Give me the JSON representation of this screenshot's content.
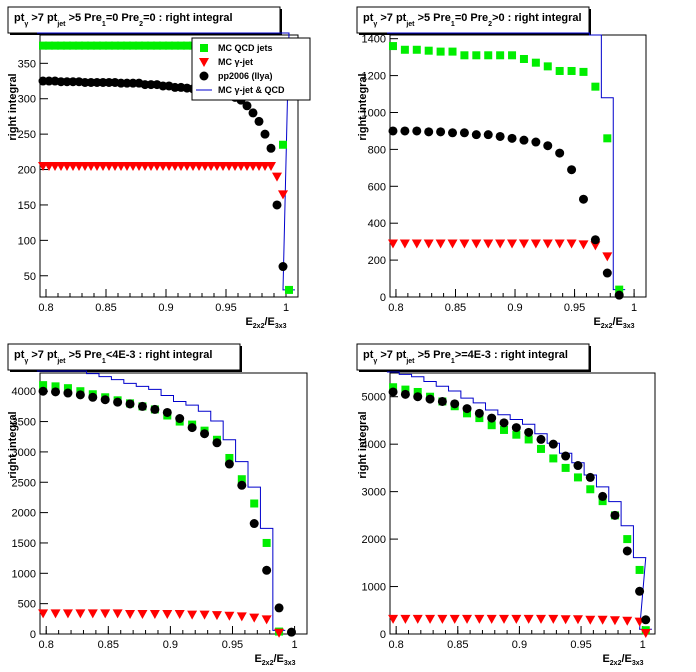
{
  "chart_data": [
    {
      "type": "scatter",
      "title_parts": [
        "pt",
        "γ",
        " >7  pt",
        "jet",
        " >5 Pre",
        "1",
        "=0 Pre",
        "2",
        "=0 : right integral"
      ],
      "xlabel": [
        "E",
        "2x2",
        "/E",
        "3x3"
      ],
      "ylabel": "right integral",
      "xlim": [
        0.795,
        1.01
      ],
      "ylim": [
        20,
        390
      ],
      "xticks": [
        "0.8",
        "0.85",
        "0.9",
        "0.95",
        "1"
      ],
      "yticks": [
        50,
        100,
        150,
        200,
        250,
        300,
        350
      ],
      "x": [
        0.7975,
        0.8025,
        0.8075,
        0.8125,
        0.8175,
        0.8225,
        0.8275,
        0.8325,
        0.8375,
        0.8425,
        0.8475,
        0.8525,
        0.8575,
        0.8625,
        0.8675,
        0.8725,
        0.8775,
        0.8825,
        0.8875,
        0.8925,
        0.8975,
        0.9025,
        0.9075,
        0.9125,
        0.9175,
        0.9225,
        0.9275,
        0.9325,
        0.9375,
        0.9425,
        0.9475,
        0.9525,
        0.9575,
        0.9625,
        0.9675,
        0.9725,
        0.9775,
        0.9825,
        0.9875,
        0.9925,
        0.9975,
        1.0025
      ],
      "series": [
        {
          "name": "MC QCD jets",
          "marker": "square",
          "color": "#00ee00",
          "values": [
            375,
            375,
            375,
            375,
            375,
            375,
            375,
            375,
            375,
            375,
            375,
            375,
            375,
            375,
            375,
            375,
            375,
            375,
            375,
            375,
            375,
            375,
            375,
            375,
            375,
            375,
            375,
            375,
            375,
            375,
            375,
            375,
            375,
            375,
            375,
            375,
            375,
            375,
            375,
            375,
            235,
            30
          ]
        },
        {
          "name": "MC γ-jet",
          "marker": "triangle-down",
          "color": "#ff0000",
          "values": [
            205,
            205,
            205,
            205,
            205,
            205,
            205,
            205,
            205,
            205,
            205,
            205,
            205,
            205,
            205,
            205,
            205,
            205,
            205,
            205,
            205,
            205,
            205,
            205,
            205,
            205,
            205,
            205,
            205,
            205,
            205,
            205,
            205,
            205,
            205,
            205,
            205,
            205,
            205,
            190,
            165,
            null
          ]
        },
        {
          "name": "pp2006 (Ilya)",
          "marker": "circle",
          "color": "#000000",
          "values": [
            325,
            325,
            325,
            324,
            324,
            324,
            324,
            323,
            323,
            323,
            323,
            323,
            323,
            322,
            322,
            322,
            322,
            320,
            320,
            320,
            318,
            318,
            316,
            316,
            315,
            314,
            312,
            312,
            310,
            308,
            306,
            304,
            302,
            298,
            290,
            280,
            268,
            250,
            230,
            150,
            63,
            null
          ]
        },
        {
          "name": "MC γ-jet & QCD",
          "marker": "line",
          "color": "#0000cc",
          "values": []
        }
      ]
    },
    {
      "type": "scatter",
      "title_parts": [
        "pt",
        "γ",
        " >7  pt",
        "jet",
        " >5 Pre",
        "1",
        "=0 Pre",
        "2",
        ">0 : right integral"
      ],
      "xlabel": [
        "E",
        "2x2",
        "/E",
        "3x3"
      ],
      "ylabel": "right integral",
      "xlim": [
        0.795,
        1.01
      ],
      "ylim": [
        0,
        1420
      ],
      "xticks": [
        "0.8",
        "0.85",
        "0.9",
        "0.95",
        "1"
      ],
      "yticks": [
        0,
        200,
        400,
        600,
        800,
        1000,
        1200,
        1400
      ],
      "x": [
        0.7975,
        0.8075,
        0.8175,
        0.8275,
        0.8375,
        0.8475,
        0.8575,
        0.8675,
        0.8775,
        0.8875,
        0.8975,
        0.9075,
        0.9175,
        0.9275,
        0.9375,
        0.9475,
        0.9575,
        0.9675,
        0.9775,
        0.9875,
        0.9975,
        1.0025
      ],
      "series": [
        {
          "name": "MC QCD jets",
          "marker": "square",
          "color": "#00ee00",
          "values": [
            1360,
            1340,
            1340,
            1335,
            1330,
            1330,
            1310,
            1310,
            1310,
            1310,
            1310,
            1290,
            1270,
            1250,
            1225,
            1225,
            1220,
            1140,
            860,
            40,
            null,
            null
          ]
        },
        {
          "name": "MC γ-jet",
          "marker": "triangle-down",
          "color": "#ff0000",
          "values": [
            290,
            290,
            290,
            290,
            290,
            290,
            290,
            290,
            290,
            290,
            290,
            290,
            290,
            290,
            290,
            290,
            285,
            280,
            220,
            null,
            null,
            null
          ]
        },
        {
          "name": "pp2006 (Ilya)",
          "marker": "circle",
          "color": "#000000",
          "values": [
            900,
            900,
            900,
            895,
            895,
            890,
            890,
            880,
            880,
            870,
            860,
            850,
            840,
            820,
            780,
            690,
            530,
            310,
            130,
            10,
            null,
            null
          ]
        },
        {
          "name": "MC γ-jet & QCD",
          "marker": "line",
          "color": "#0000cc",
          "values": []
        }
      ]
    },
    {
      "type": "scatter",
      "title_parts": [
        "pt",
        "γ",
        " >7  pt",
        "jet",
        " >5 Pre",
        "1",
        "<4E-3 : right integral"
      ],
      "xlabel": [
        "E",
        "2x2",
        "/E",
        "3x3"
      ],
      "ylabel": "right integral",
      "xlim": [
        0.795,
        1.01
      ],
      "ylim": [
        0,
        4300
      ],
      "xticks": [
        "0.8",
        "0.85",
        "0.9",
        "0.95",
        "1"
      ],
      "yticks": [
        0,
        500,
        1000,
        1500,
        2000,
        2500,
        3000,
        3500,
        4000
      ],
      "x": [
        0.7975,
        0.8075,
        0.8175,
        0.8275,
        0.8375,
        0.8475,
        0.8575,
        0.8675,
        0.8775,
        0.8875,
        0.8975,
        0.9075,
        0.9175,
        0.9275,
        0.9375,
        0.9475,
        0.9575,
        0.9675,
        0.9775,
        0.9875,
        0.9975,
        1.0025
      ],
      "series": [
        {
          "name": "MC QCD jets",
          "marker": "square",
          "color": "#00ee00",
          "values": [
            4100,
            4080,
            4050,
            4000,
            3950,
            3900,
            3850,
            3800,
            3750,
            3700,
            3600,
            3500,
            3450,
            3350,
            3200,
            2900,
            2550,
            2150,
            1500,
            40,
            null,
            null
          ]
        },
        {
          "name": "MC γ-jet",
          "marker": "triangle-down",
          "color": "#ff0000",
          "values": [
            340,
            340,
            340,
            340,
            340,
            340,
            340,
            330,
            330,
            330,
            330,
            330,
            320,
            320,
            310,
            300,
            290,
            270,
            240,
            20,
            null,
            null
          ]
        },
        {
          "name": "pp2006 (Ilya)",
          "marker": "circle",
          "color": "#000000",
          "values": [
            4000,
            3990,
            3970,
            3940,
            3900,
            3860,
            3820,
            3790,
            3750,
            3700,
            3650,
            3550,
            3400,
            3300,
            3150,
            2800,
            2450,
            1820,
            1050,
            430,
            30,
            null
          ]
        },
        {
          "name": "MC γ-jet & QCD",
          "marker": "line",
          "color": "#0000cc",
          "values": []
        }
      ]
    },
    {
      "type": "scatter",
      "title_parts": [
        "pt",
        "γ",
        " >7  pt",
        "jet",
        " >5 Pre",
        "1",
        ">=4E-3 : right integral"
      ],
      "xlabel": [
        "E",
        "2x2",
        "/E",
        "3x3"
      ],
      "ylabel": "right integral",
      "xlim": [
        0.795,
        1.01
      ],
      "ylim": [
        0,
        5500
      ],
      "xticks": [
        "0.8",
        "0.85",
        "0.9",
        "0.95",
        "1"
      ],
      "yticks": [
        0,
        1000,
        2000,
        3000,
        4000,
        5000
      ],
      "x": [
        0.7975,
        0.8075,
        0.8175,
        0.8275,
        0.8375,
        0.8475,
        0.8575,
        0.8675,
        0.8775,
        0.8875,
        0.8975,
        0.9075,
        0.9175,
        0.9275,
        0.9375,
        0.9475,
        0.9575,
        0.9675,
        0.9775,
        0.9875,
        0.9975,
        1.0025
      ],
      "series": [
        {
          "name": "MC QCD jets",
          "marker": "square",
          "color": "#00ee00",
          "values": [
            5200,
            5150,
            5100,
            5000,
            4900,
            4800,
            4650,
            4550,
            4400,
            4300,
            4200,
            4100,
            3900,
            3700,
            3500,
            3300,
            3050,
            2800,
            2500,
            2000,
            1350,
            80
          ]
        },
        {
          "name": "MC γ-jet",
          "marker": "triangle-down",
          "color": "#ff0000",
          "values": [
            320,
            320,
            320,
            320,
            320,
            320,
            320,
            320,
            320,
            320,
            320,
            320,
            320,
            320,
            310,
            310,
            300,
            300,
            290,
            280,
            260,
            20
          ]
        },
        {
          "name": "pp2006 (Ilya)",
          "marker": "circle",
          "color": "#000000",
          "values": [
            5100,
            5050,
            5000,
            4950,
            4900,
            4850,
            4750,
            4650,
            4550,
            4450,
            4350,
            4250,
            4100,
            4000,
            3750,
            3550,
            3300,
            2900,
            2500,
            1750,
            900,
            300
          ]
        },
        {
          "name": "MC γ-jet & QCD",
          "marker": "line",
          "color": "#0000cc",
          "values": []
        }
      ]
    }
  ],
  "legend": {
    "entries": [
      "MC QCD jets",
      "MC γ-jet",
      "pp2006 (Ilya)",
      "MC γ-jet & QCD"
    ]
  }
}
